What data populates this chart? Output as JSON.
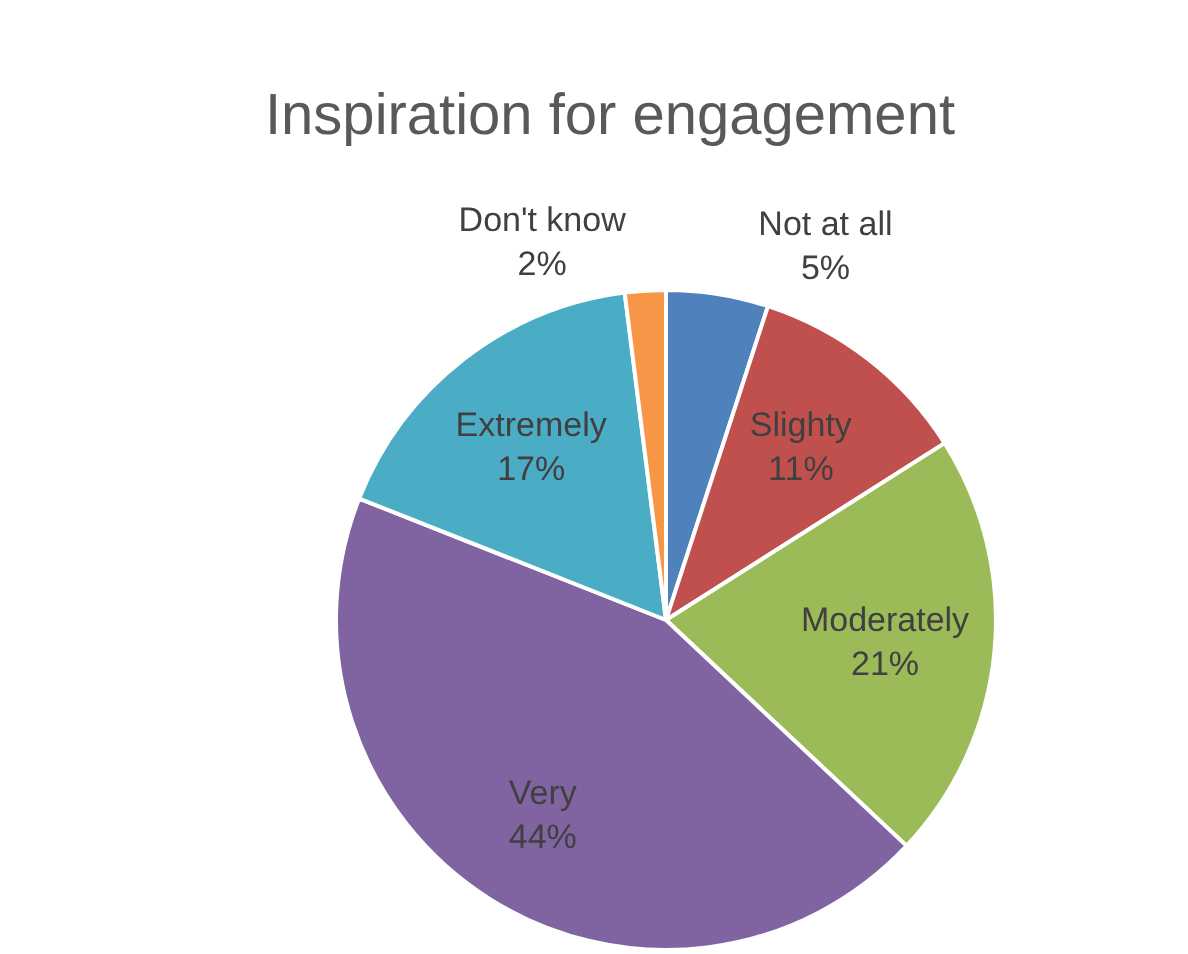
{
  "chart_data": {
    "type": "pie",
    "title": "Inspiration for engagement",
    "categories": [
      "Not at all",
      "Slighty",
      "Moderately",
      "Very",
      "Extremely",
      "Don't know"
    ],
    "values": [
      5,
      11,
      21,
      44,
      17,
      2
    ],
    "value_labels": [
      "5%",
      "11%",
      "21%",
      "44%",
      "17%",
      "2%"
    ],
    "colors": [
      "#4f81bd",
      "#c0504d",
      "#9bbb59",
      "#8064a2",
      "#4bacc6",
      "#f79646"
    ]
  }
}
